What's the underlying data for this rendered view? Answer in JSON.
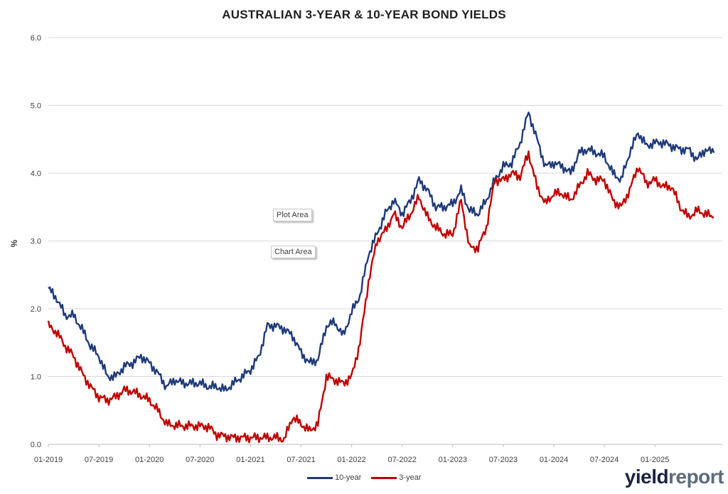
{
  "chart_data": {
    "type": "line",
    "title": "AUSTRALIAN 3-YEAR & 10-YEAR BOND YIELDS",
    "ylabel": "%",
    "xlabel": "",
    "ylim": [
      0,
      6
    ],
    "yticks": [
      "0.0",
      "1.0",
      "2.0",
      "3.0",
      "4.0",
      "5.0",
      "6.0"
    ],
    "xticks": [
      "01-2019",
      "07-2019",
      "01-2020",
      "07-2020",
      "01-2021",
      "07-2021",
      "01-2022",
      "07-2022",
      "01-2023",
      "07-2023",
      "01-2024",
      "07-2024",
      "01-2025"
    ],
    "grid": "horizontal",
    "legend_position": "bottom",
    "x": [
      "2019-01",
      "2019-02",
      "2019-03",
      "2019-04",
      "2019-05",
      "2019-06",
      "2019-07",
      "2019-08",
      "2019-09",
      "2019-10",
      "2019-11",
      "2019-12",
      "2020-01",
      "2020-02",
      "2020-03",
      "2020-04",
      "2020-05",
      "2020-06",
      "2020-07",
      "2020-08",
      "2020-09",
      "2020-10",
      "2020-11",
      "2020-12",
      "2021-01",
      "2021-02",
      "2021-03",
      "2021-04",
      "2021-05",
      "2021-06",
      "2021-07",
      "2021-08",
      "2021-09",
      "2021-10",
      "2021-11",
      "2021-12",
      "2022-01",
      "2022-02",
      "2022-03",
      "2022-04",
      "2022-05",
      "2022-06",
      "2022-07",
      "2022-08",
      "2022-09",
      "2022-10",
      "2022-11",
      "2022-12",
      "2023-01",
      "2023-02",
      "2023-03",
      "2023-04",
      "2023-05",
      "2023-06",
      "2023-07",
      "2023-08",
      "2023-09",
      "2023-10",
      "2023-11",
      "2023-12",
      "2024-01",
      "2024-02",
      "2024-03",
      "2024-04",
      "2024-05",
      "2024-06",
      "2024-07",
      "2024-08",
      "2024-09",
      "2024-10",
      "2024-11",
      "2024-12",
      "2025-01",
      "2025-02",
      "2025-03",
      "2025-04",
      "2025-05",
      "2025-06",
      "2025-07",
      "2025-08"
    ],
    "series": [
      {
        "name": "10-year",
        "color": "#1f3b7a",
        "values": [
          2.3,
          2.15,
          1.9,
          1.9,
          1.7,
          1.45,
          1.3,
          1.0,
          1.0,
          1.15,
          1.2,
          1.3,
          1.2,
          1.05,
          0.85,
          0.95,
          0.9,
          0.9,
          0.9,
          0.85,
          0.85,
          0.8,
          0.9,
          1.0,
          1.1,
          1.3,
          1.75,
          1.75,
          1.7,
          1.6,
          1.35,
          1.2,
          1.25,
          1.75,
          1.8,
          1.6,
          1.95,
          2.2,
          2.8,
          3.1,
          3.4,
          3.6,
          3.4,
          3.6,
          3.9,
          3.75,
          3.5,
          3.5,
          3.55,
          3.75,
          3.45,
          3.4,
          3.6,
          3.9,
          4.1,
          4.15,
          4.45,
          4.9,
          4.5,
          4.1,
          4.15,
          4.1,
          4.0,
          4.3,
          4.35,
          4.3,
          4.25,
          4.0,
          3.9,
          4.3,
          4.6,
          4.4,
          4.45,
          4.45,
          4.4,
          4.35,
          4.35,
          4.2,
          4.35,
          4.3
        ]
      },
      {
        "name": "3-year",
        "color": "#c00000",
        "values": [
          1.75,
          1.65,
          1.45,
          1.3,
          1.05,
          0.85,
          0.7,
          0.65,
          0.7,
          0.8,
          0.78,
          0.72,
          0.65,
          0.5,
          0.3,
          0.28,
          0.27,
          0.27,
          0.27,
          0.26,
          0.14,
          0.12,
          0.1,
          0.1,
          0.1,
          0.1,
          0.1,
          0.1,
          0.07,
          0.4,
          0.3,
          0.2,
          0.3,
          1.0,
          0.95,
          0.9,
          1.0,
          1.5,
          2.4,
          3.0,
          3.15,
          3.4,
          3.2,
          3.4,
          3.65,
          3.35,
          3.2,
          3.1,
          3.1,
          3.6,
          2.9,
          2.9,
          3.2,
          3.9,
          3.9,
          4.0,
          3.95,
          4.3,
          3.8,
          3.55,
          3.7,
          3.7,
          3.6,
          3.8,
          4.0,
          3.9,
          3.9,
          3.6,
          3.5,
          3.75,
          4.1,
          3.85,
          3.9,
          3.8,
          3.8,
          3.5,
          3.35,
          3.45,
          3.4,
          3.35
        ]
      }
    ],
    "annotations": [
      "Plot Area",
      "Chart Area"
    ]
  },
  "legend": {
    "series_1": "10-year",
    "series_2": "3-year"
  },
  "logo": {
    "part1": "yield",
    "part2": "report"
  }
}
